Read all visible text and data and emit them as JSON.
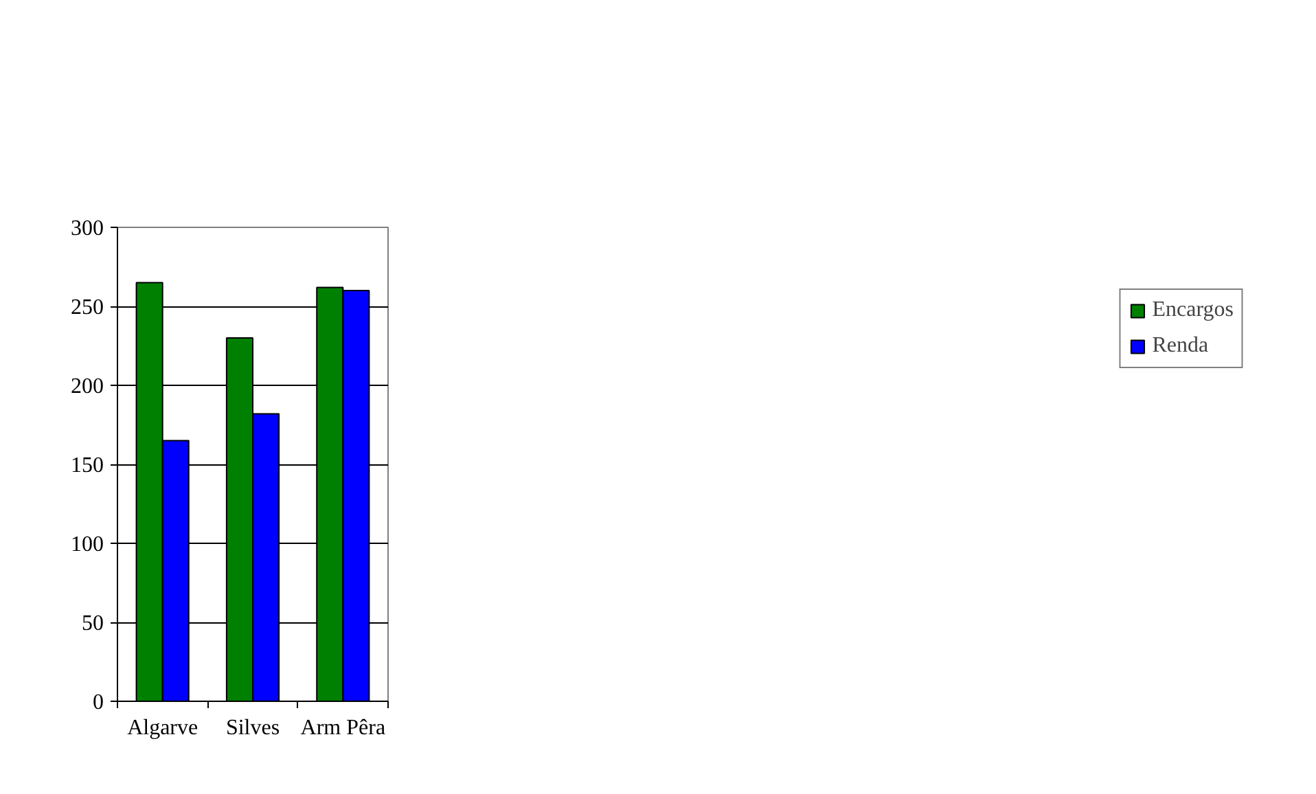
{
  "chart_data": {
    "type": "bar",
    "categories": [
      "Algarve",
      "Silves",
      "Arm Pêra"
    ],
    "series": [
      {
        "name": "Encargos",
        "color": "#008000",
        "values": [
          265,
          230,
          262
        ]
      },
      {
        "name": "Renda",
        "color": "#0000ff",
        "values": [
          165,
          182,
          260
        ]
      }
    ],
    "ylim": [
      0,
      300
    ],
    "yticks": [
      0,
      50,
      100,
      150,
      200,
      250,
      300
    ],
    "grid": "y",
    "legend": "right"
  }
}
